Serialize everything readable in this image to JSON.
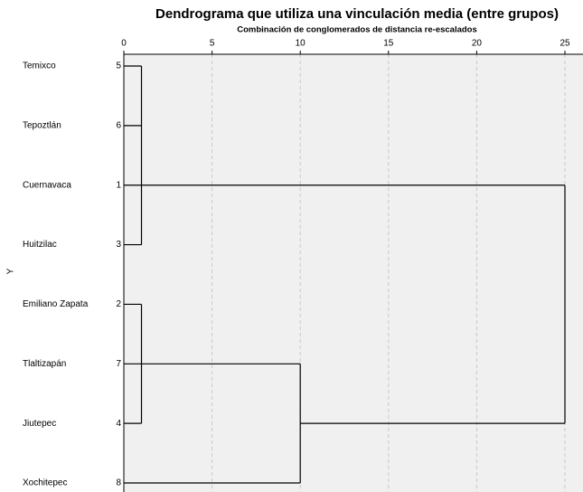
{
  "chart_data": {
    "type": "dendrogram",
    "title": "Dendrograma que utiliza una vinculación media (entre grupos)",
    "subtitle": "Combinación de conglomerados de distancia re-escalados",
    "y_label": "Y",
    "leaves": [
      {
        "name": "Temixco",
        "id": "5"
      },
      {
        "name": "Tepoztlán",
        "id": "6"
      },
      {
        "name": "Cuernavaca",
        "id": "1"
      },
      {
        "name": "Huitzilac",
        "id": "3"
      },
      {
        "name": "Emiliano Zapata",
        "id": "2"
      },
      {
        "name": "Tlaltizapán",
        "id": "7"
      },
      {
        "name": "Jiutepec",
        "id": "4"
      },
      {
        "name": "Xochitepec",
        "id": "8"
      }
    ],
    "tree": {
      "height": 25,
      "children": [
        {
          "height": 1,
          "children": [
            0,
            1,
            2,
            3
          ]
        },
        {
          "height": 10,
          "children": [
            {
              "height": 1,
              "children": [
                4,
                5,
                6
              ]
            },
            7
          ]
        }
      ]
    },
    "xlim": [
      0,
      26
    ],
    "xticks": [
      0,
      5,
      10,
      15,
      20,
      25
    ],
    "grid": true,
    "color": "#000000"
  }
}
